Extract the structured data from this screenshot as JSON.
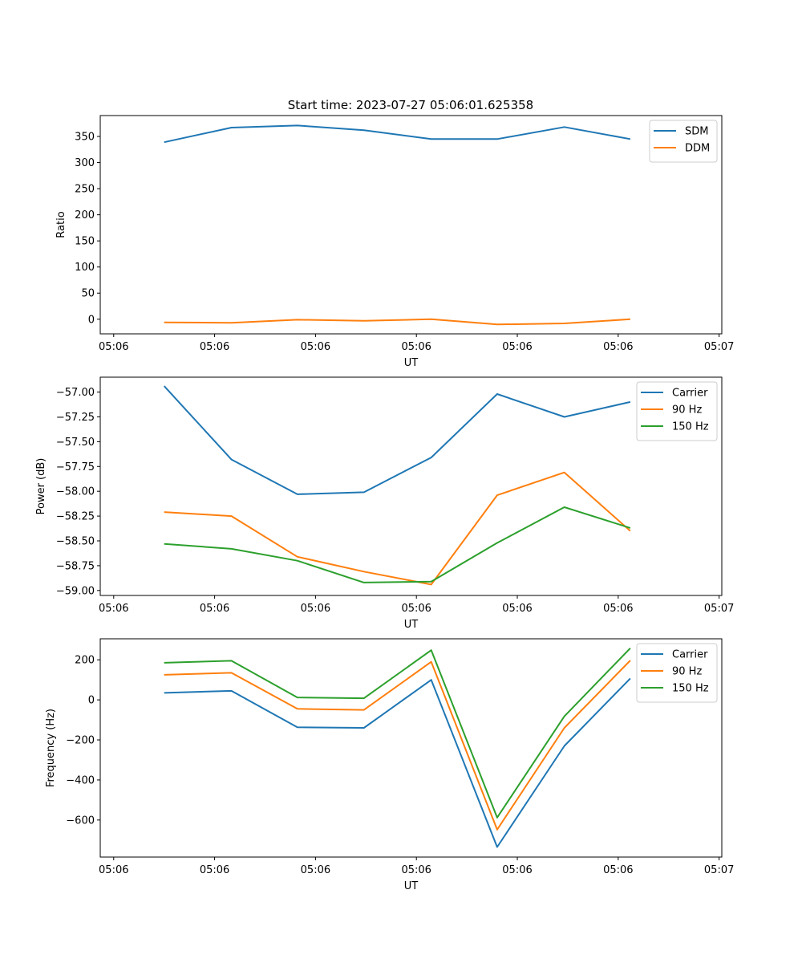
{
  "figure": {
    "title": "Start time: 2023-07-27 05:06:01.625358"
  },
  "chart_data": [
    {
      "type": "line",
      "title": "Start time: 2023-07-27 05:06:01.625358",
      "xlabel": "UT",
      "ylabel": "Ratio",
      "x_tick_values": [
        0,
        7.5,
        15,
        22.5,
        30,
        37.5,
        45
      ],
      "x_tick_labels": [
        "05:06",
        "05:06",
        "05:06",
        "05:06",
        "05:06",
        "05:06",
        "05:07"
      ],
      "xlim": [
        -1,
        45.2
      ],
      "x": [
        3.75,
        8.75,
        13.65,
        18.6,
        23.6,
        28.5,
        33.5,
        38.4
      ],
      "y_ticks": [
        0,
        50,
        100,
        150,
        200,
        250,
        300,
        350
      ],
      "ylim": [
        -28,
        390
      ],
      "legend": "upper right",
      "series": [
        {
          "name": "SDM",
          "color": "#1f77b4",
          "values": [
            339,
            367,
            371,
            362,
            345,
            345,
            368,
            345
          ]
        },
        {
          "name": "DDM",
          "color": "#ff7f0e",
          "values": [
            -6,
            -7,
            -1,
            -3,
            0,
            -10,
            -8,
            0
          ]
        }
      ]
    },
    {
      "type": "line",
      "title": "",
      "xlabel": "UT",
      "ylabel": "Power (dB)",
      "x_tick_values": [
        0,
        7.5,
        15,
        22.5,
        30,
        37.5,
        45
      ],
      "x_tick_labels": [
        "05:06",
        "05:06",
        "05:06",
        "05:06",
        "05:06",
        "05:06",
        "05:07"
      ],
      "xlim": [
        -1,
        45.2
      ],
      "x": [
        3.75,
        8.75,
        13.65,
        18.6,
        23.6,
        28.5,
        33.5,
        38.4
      ],
      "y_ticks": [
        -59.0,
        -58.75,
        -58.5,
        -58.25,
        -58.0,
        -57.75,
        -57.5,
        -57.25,
        -57.0
      ],
      "y_tick_labels": [
        "−59.00",
        "−58.75",
        "−58.50",
        "−58.25",
        "−58.00",
        "−57.75",
        "−57.50",
        "−57.25",
        "−57.00"
      ],
      "ylim": [
        -59.05,
        -56.85
      ],
      "legend": "upper right",
      "series": [
        {
          "name": "Carrier",
          "color": "#1f77b4",
          "values": [
            -56.94,
            -57.68,
            -58.03,
            -58.01,
            -57.66,
            -57.02,
            -57.25,
            -57.1
          ]
        },
        {
          "name": "90 Hz",
          "color": "#ff7f0e",
          "values": [
            -58.21,
            -58.25,
            -58.66,
            -58.81,
            -58.94,
            -58.04,
            -57.81,
            -58.4
          ]
        },
        {
          "name": "150 Hz",
          "color": "#2ca02c",
          "values": [
            -58.53,
            -58.58,
            -58.7,
            -58.92,
            -58.91,
            -58.52,
            -58.16,
            -58.37
          ]
        }
      ]
    },
    {
      "type": "line",
      "title": "",
      "xlabel": "UT",
      "ylabel": "Frequency (Hz)",
      "x_tick_values": [
        0,
        7.5,
        15,
        22.5,
        30,
        37.5,
        45
      ],
      "x_tick_labels": [
        "05:06",
        "05:06",
        "05:06",
        "05:06",
        "05:06",
        "05:06",
        "05:07"
      ],
      "xlim": [
        -1,
        45.2
      ],
      "x": [
        3.75,
        8.75,
        13.65,
        18.6,
        23.6,
        28.5,
        33.5,
        38.4
      ],
      "y_ticks": [
        -600,
        -400,
        -200,
        0,
        200
      ],
      "y_tick_labels": [
        "−600",
        "−400",
        "−200",
        "0",
        "200"
      ],
      "ylim": [
        -785,
        305
      ],
      "legend": "upper right",
      "series": [
        {
          "name": "Carrier",
          "color": "#1f77b4",
          "values": [
            35,
            45,
            -137,
            -140,
            100,
            -735,
            -230,
            107
          ]
        },
        {
          "name": "90 Hz",
          "color": "#ff7f0e",
          "values": [
            125,
            135,
            -45,
            -50,
            190,
            -648,
            -140,
            197
          ]
        },
        {
          "name": "150 Hz",
          "color": "#2ca02c",
          "values": [
            185,
            195,
            12,
            8,
            248,
            -588,
            -82,
            258
          ]
        }
      ]
    }
  ]
}
